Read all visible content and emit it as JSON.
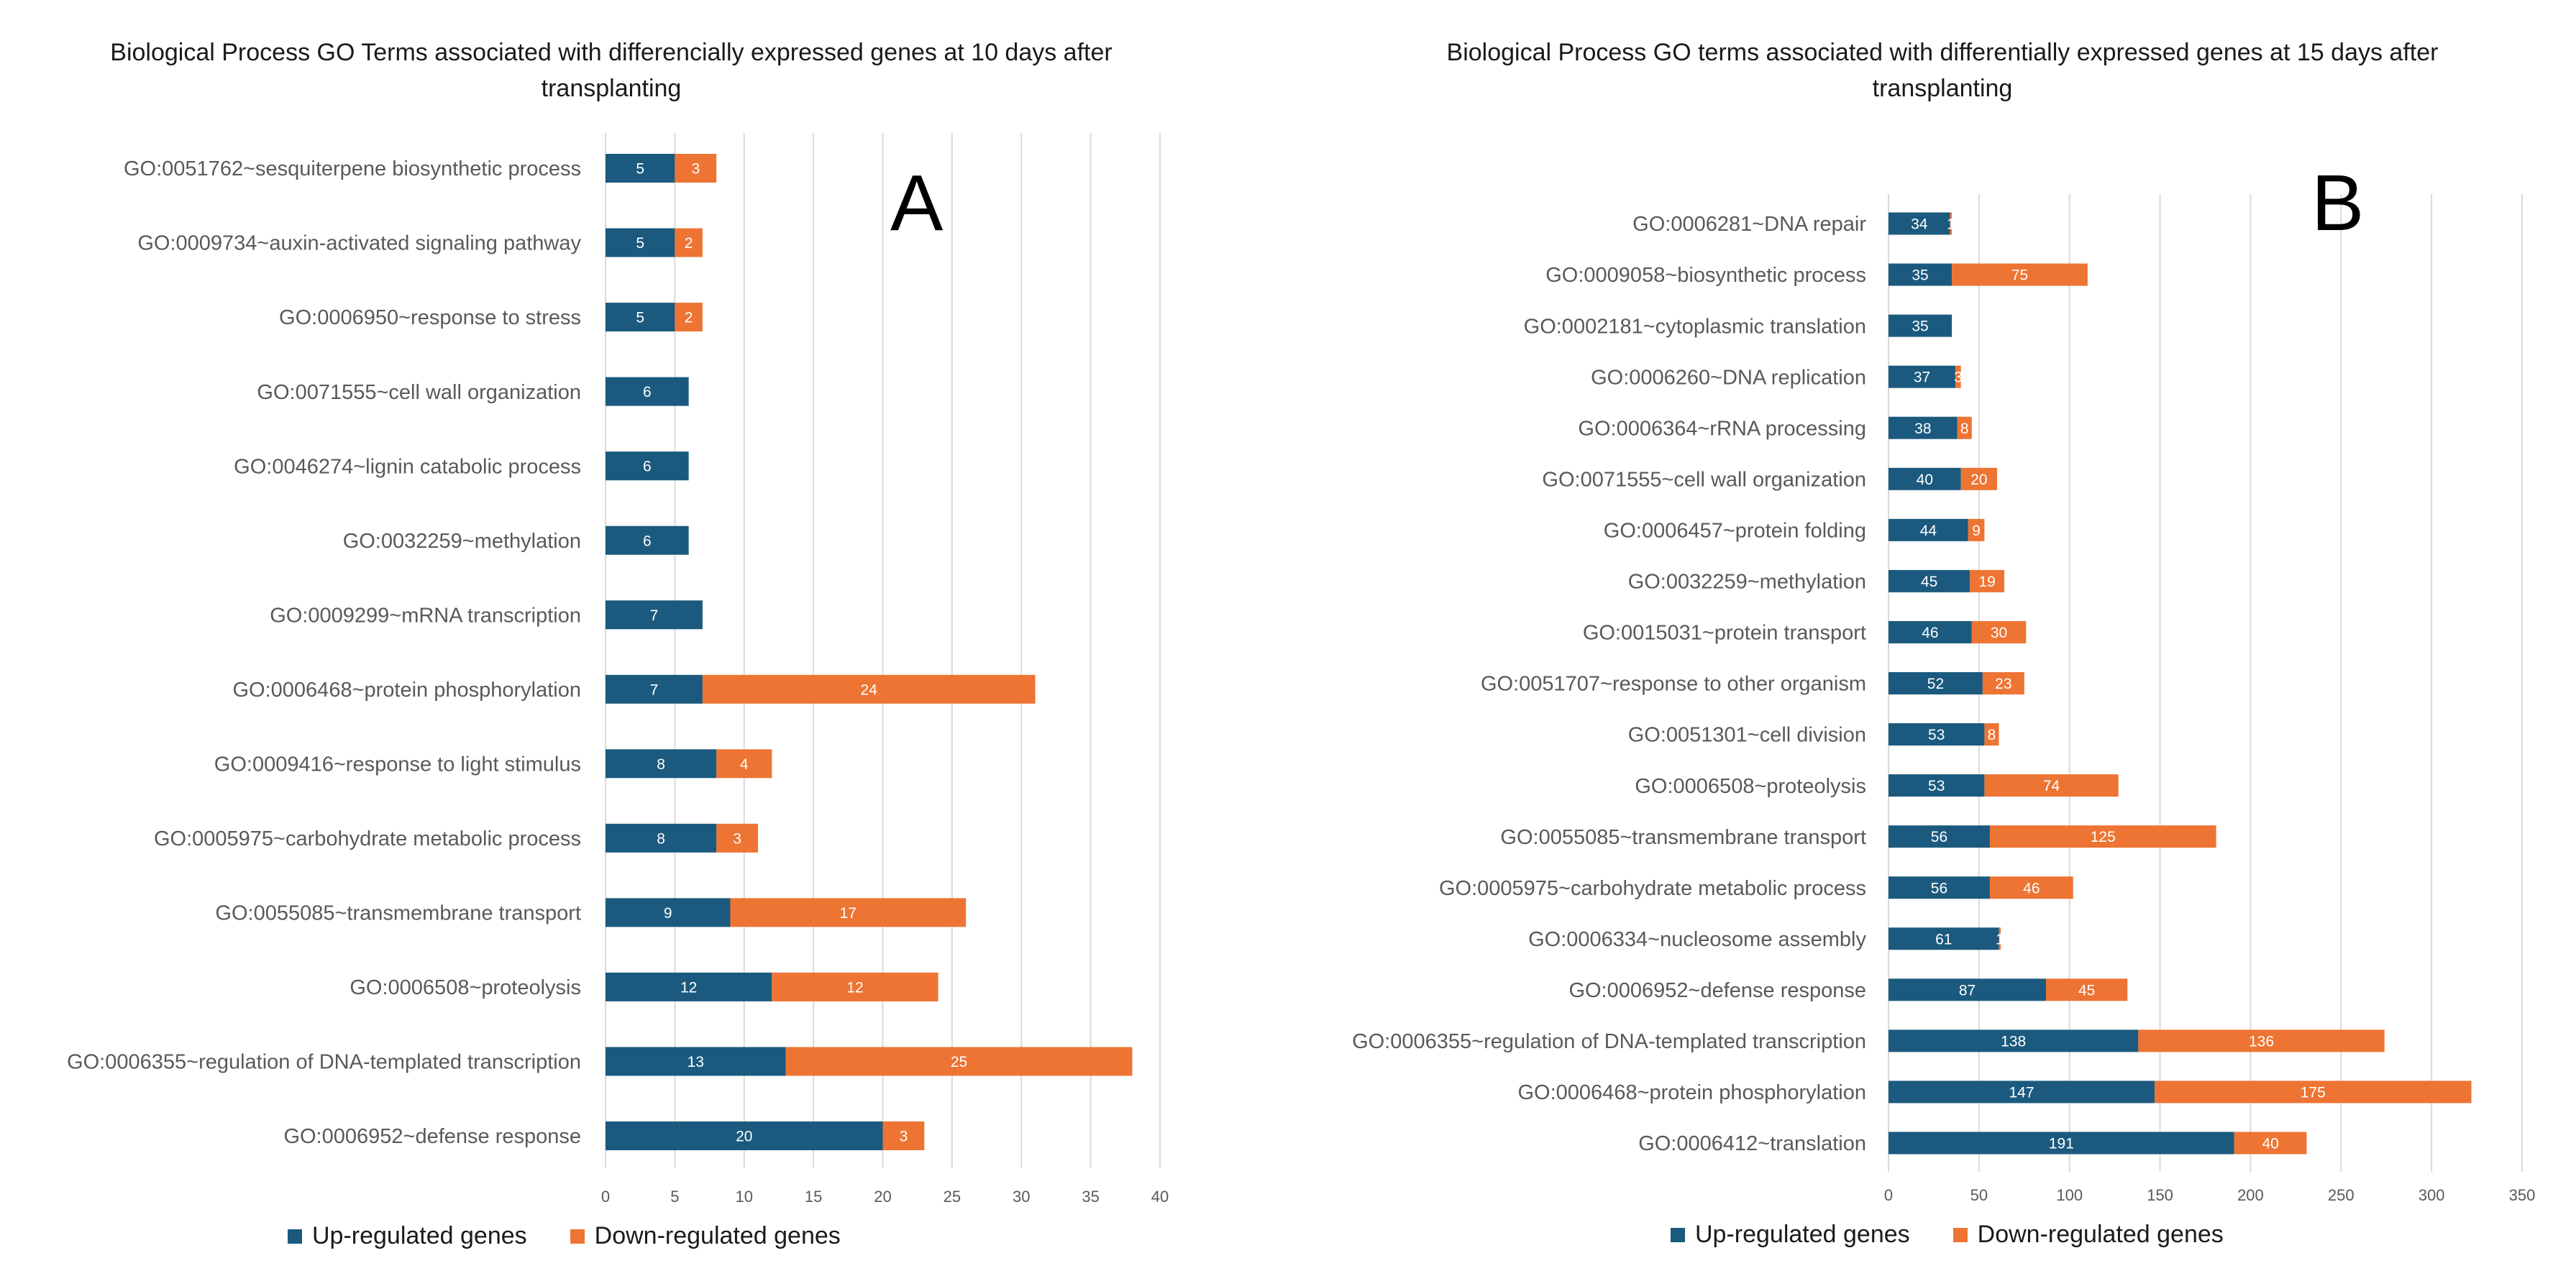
{
  "colors": {
    "up": "#1b5a7e",
    "down": "#ed7433",
    "grid": "#d9d9d9",
    "axis_text": "#595959",
    "bar_label": "#ffffff"
  },
  "legend": {
    "up_label": "Up-regulated genes",
    "down_label": "Down-regulated genes"
  },
  "chart_data": [
    {
      "type": "bar",
      "orientation": "horizontal",
      "stacked": true,
      "panel_label": "A",
      "title": "Biological Process GO Terms associated with differencially expressed genes  at 10 days after transplanting",
      "categories": [
        "GO:0051762~sesquiterpene biosynthetic process",
        "GO:0009734~auxin-activated signaling pathway",
        "GO:0006950~response to stress",
        "GO:0071555~cell wall organization",
        "GO:0046274~lignin catabolic process",
        "GO:0032259~methylation",
        "GO:0009299~mRNA transcription",
        "GO:0006468~protein phosphorylation",
        "GO:0009416~response to light stimulus",
        "GO:0005975~carbohydrate metabolic process",
        "GO:0055085~transmembrane transport",
        "GO:0006508~proteolysis",
        "GO:0006355~regulation of DNA-templated transcription",
        "GO:0006952~defense response"
      ],
      "series": [
        {
          "name": "Up-regulated genes",
          "values": [
            5,
            5,
            5,
            6,
            6,
            6,
            7,
            7,
            8,
            8,
            9,
            12,
            13,
            20
          ]
        },
        {
          "name": "Down-regulated genes",
          "values": [
            3,
            2,
            2,
            0,
            0,
            0,
            0,
            24,
            4,
            3,
            17,
            12,
            25,
            3
          ]
        }
      ],
      "xlim": [
        0,
        40
      ],
      "xticks": [
        "0",
        "5",
        "10",
        "15",
        "20",
        "25",
        "30",
        "35",
        "40"
      ],
      "grid": true,
      "legend_position": "bottom"
    },
    {
      "type": "bar",
      "orientation": "horizontal",
      "stacked": true,
      "panel_label": "B",
      "title": "Biological Process GO terms associated with differentially expressed genes at 15 days after transplanting",
      "categories": [
        "GO:0006281~DNA repair",
        "GO:0009058~biosynthetic process",
        "GO:0002181~cytoplasmic translation",
        "GO:0006260~DNA replication",
        "GO:0006364~rRNA processing",
        "GO:0071555~cell wall organization",
        "GO:0006457~protein folding",
        "GO:0032259~methylation",
        "GO:0015031~protein transport",
        "GO:0051707~response to other organism",
        "GO:0051301~cell division",
        "GO:0006508~proteolysis",
        "GO:0055085~transmembrane transport",
        "GO:0005975~carbohydrate metabolic process",
        "GO:0006334~nucleosome assembly",
        "GO:0006952~defense response",
        "GO:0006355~regulation of DNA-templated transcription",
        "GO:0006468~protein phosphorylation",
        "GO:0006412~translation"
      ],
      "series": [
        {
          "name": "Up-regulated genes",
          "values": [
            34,
            35,
            35,
            37,
            38,
            40,
            44,
            45,
            46,
            52,
            53,
            53,
            56,
            56,
            61,
            87,
            138,
            147,
            191
          ]
        },
        {
          "name": "Down-regulated genes",
          "values": [
            1,
            75,
            0,
            3,
            8,
            20,
            9,
            19,
            30,
            23,
            8,
            74,
            125,
            46,
            1,
            45,
            136,
            175,
            40
          ]
        }
      ],
      "xlim": [
        0,
        350
      ],
      "xticks": [
        "0",
        "50",
        "100",
        "150",
        "200",
        "250",
        "300",
        "350"
      ],
      "grid": true,
      "legend_position": "bottom"
    }
  ]
}
